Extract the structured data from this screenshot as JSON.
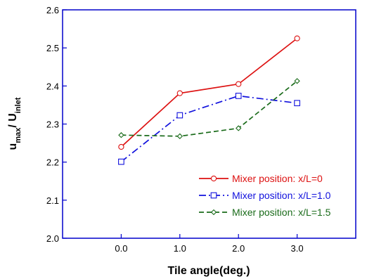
{
  "chart_data": {
    "type": "line",
    "title": "",
    "xlabel": "Tile angle(deg.)",
    "ylabel": {
      "main_1": "u",
      "sub_1": "max",
      "main_2": "/ U",
      "sub_2": "inlet"
    },
    "x": [
      0,
      1,
      2,
      3
    ],
    "x_tick_labels": [
      "0.0",
      "1.0",
      "2.0",
      "3.0"
    ],
    "xlim": [
      -1,
      4
    ],
    "ylim": [
      2.0,
      2.6
    ],
    "y_ticks": [
      2.0,
      2.1,
      2.2,
      2.3,
      2.4,
      2.5,
      2.6
    ],
    "y_tick_labels": [
      "2.0",
      "2.1",
      "2.2",
      "2.3",
      "2.4",
      "2.5",
      "2.6"
    ],
    "grid": false,
    "legend_position": "bottom-right",
    "axis_color": "#0000cc",
    "series": [
      {
        "name": "Mixer position: x/L=0",
        "values": [
          2.24,
          2.381,
          2.405,
          2.525
        ],
        "color": "#dd1111",
        "dash": "solid",
        "marker": "circle"
      },
      {
        "name": "Mixer position: x/L=1.0",
        "values": [
          2.201,
          2.323,
          2.374,
          2.355
        ],
        "color": "#1111dd",
        "dash": "dashdot",
        "marker": "square"
      },
      {
        "name": "Mixer position: x/L=1.5",
        "values": [
          2.271,
          2.268,
          2.289,
          2.413
        ],
        "color": "#1a6b1a",
        "dash": "dashed",
        "marker": "diamond"
      }
    ]
  }
}
